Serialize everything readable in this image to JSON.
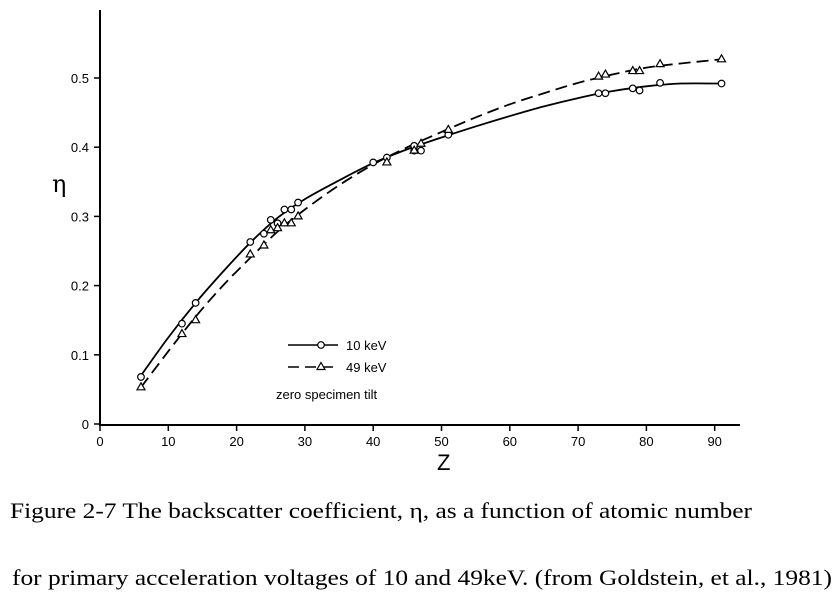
{
  "chart_data": {
    "type": "line",
    "title": "",
    "xlabel": "Z",
    "ylabel": "η",
    "xlim": [
      0,
      94
    ],
    "ylim": [
      0,
      0.59
    ],
    "xticks": [
      0,
      10,
      20,
      30,
      40,
      50,
      60,
      70,
      80,
      90
    ],
    "yticks": [
      0,
      0.1,
      0.2,
      0.3,
      0.4,
      0.5
    ],
    "ytick_labels": [
      "0",
      "0.1",
      "0.2",
      "0.3",
      "0.4",
      "0.5"
    ],
    "grid": false,
    "legend_position": "lower-center",
    "annotation": "zero specimen tilt",
    "series": [
      {
        "name": "10 keV",
        "marker": "circle",
        "line": "solid",
        "points": [
          [
            6,
            0.068
          ],
          [
            12,
            0.145
          ],
          [
            14,
            0.175
          ],
          [
            22,
            0.263
          ],
          [
            24,
            0.275
          ],
          [
            25,
            0.295
          ],
          [
            26,
            0.29
          ],
          [
            27,
            0.31
          ],
          [
            28,
            0.31
          ],
          [
            29,
            0.32
          ],
          [
            40,
            0.378
          ],
          [
            42,
            0.385
          ],
          [
            46,
            0.395
          ],
          [
            47,
            0.395
          ],
          [
            46,
            0.402
          ],
          [
            51,
            0.418
          ],
          [
            73,
            0.478
          ],
          [
            74,
            0.478
          ],
          [
            78,
            0.485
          ],
          [
            79,
            0.482
          ],
          [
            82,
            0.493
          ],
          [
            91,
            0.492
          ]
        ],
        "curve": [
          [
            6,
            0.07
          ],
          [
            10,
            0.125
          ],
          [
            14,
            0.175
          ],
          [
            18,
            0.22
          ],
          [
            22,
            0.262
          ],
          [
            26,
            0.298
          ],
          [
            30,
            0.325
          ],
          [
            35,
            0.352
          ],
          [
            40,
            0.377
          ],
          [
            45,
            0.397
          ],
          [
            50,
            0.414
          ],
          [
            55,
            0.43
          ],
          [
            60,
            0.445
          ],
          [
            65,
            0.459
          ],
          [
            70,
            0.471
          ],
          [
            75,
            0.481
          ],
          [
            80,
            0.488
          ],
          [
            85,
            0.492
          ],
          [
            91,
            0.492
          ]
        ]
      },
      {
        "name": "49 keV",
        "marker": "triangle",
        "line": "dashed",
        "points": [
          [
            6,
            0.053
          ],
          [
            12,
            0.13
          ],
          [
            14,
            0.15
          ],
          [
            22,
            0.245
          ],
          [
            24,
            0.258
          ],
          [
            25,
            0.28
          ],
          [
            26,
            0.283
          ],
          [
            27,
            0.29
          ],
          [
            28,
            0.29
          ],
          [
            29,
            0.3
          ],
          [
            42,
            0.378
          ],
          [
            46,
            0.395
          ],
          [
            47,
            0.405
          ],
          [
            51,
            0.425
          ],
          [
            73,
            0.502
          ],
          [
            74,
            0.505
          ],
          [
            78,
            0.51
          ],
          [
            79,
            0.51
          ],
          [
            82,
            0.52
          ],
          [
            91,
            0.527
          ]
        ],
        "curve": [
          [
            6,
            0.053
          ],
          [
            10,
            0.105
          ],
          [
            14,
            0.155
          ],
          [
            18,
            0.2
          ],
          [
            22,
            0.24
          ],
          [
            26,
            0.278
          ],
          [
            30,
            0.31
          ],
          [
            35,
            0.345
          ],
          [
            40,
            0.375
          ],
          [
            45,
            0.4
          ],
          [
            50,
            0.422
          ],
          [
            55,
            0.443
          ],
          [
            60,
            0.462
          ],
          [
            65,
            0.478
          ],
          [
            70,
            0.493
          ],
          [
            75,
            0.505
          ],
          [
            80,
            0.515
          ],
          [
            85,
            0.521
          ],
          [
            91,
            0.527
          ]
        ]
      }
    ]
  },
  "caption": {
    "line1_a": "Figure 2-7  The backscatter coefficient, ",
    "eta": "η",
    "line1_b": ", as a function of atomic number",
    "line2": "for primary acceleration voltages of 10 and 49keV.   (from Goldstein, et al., 1981)"
  }
}
